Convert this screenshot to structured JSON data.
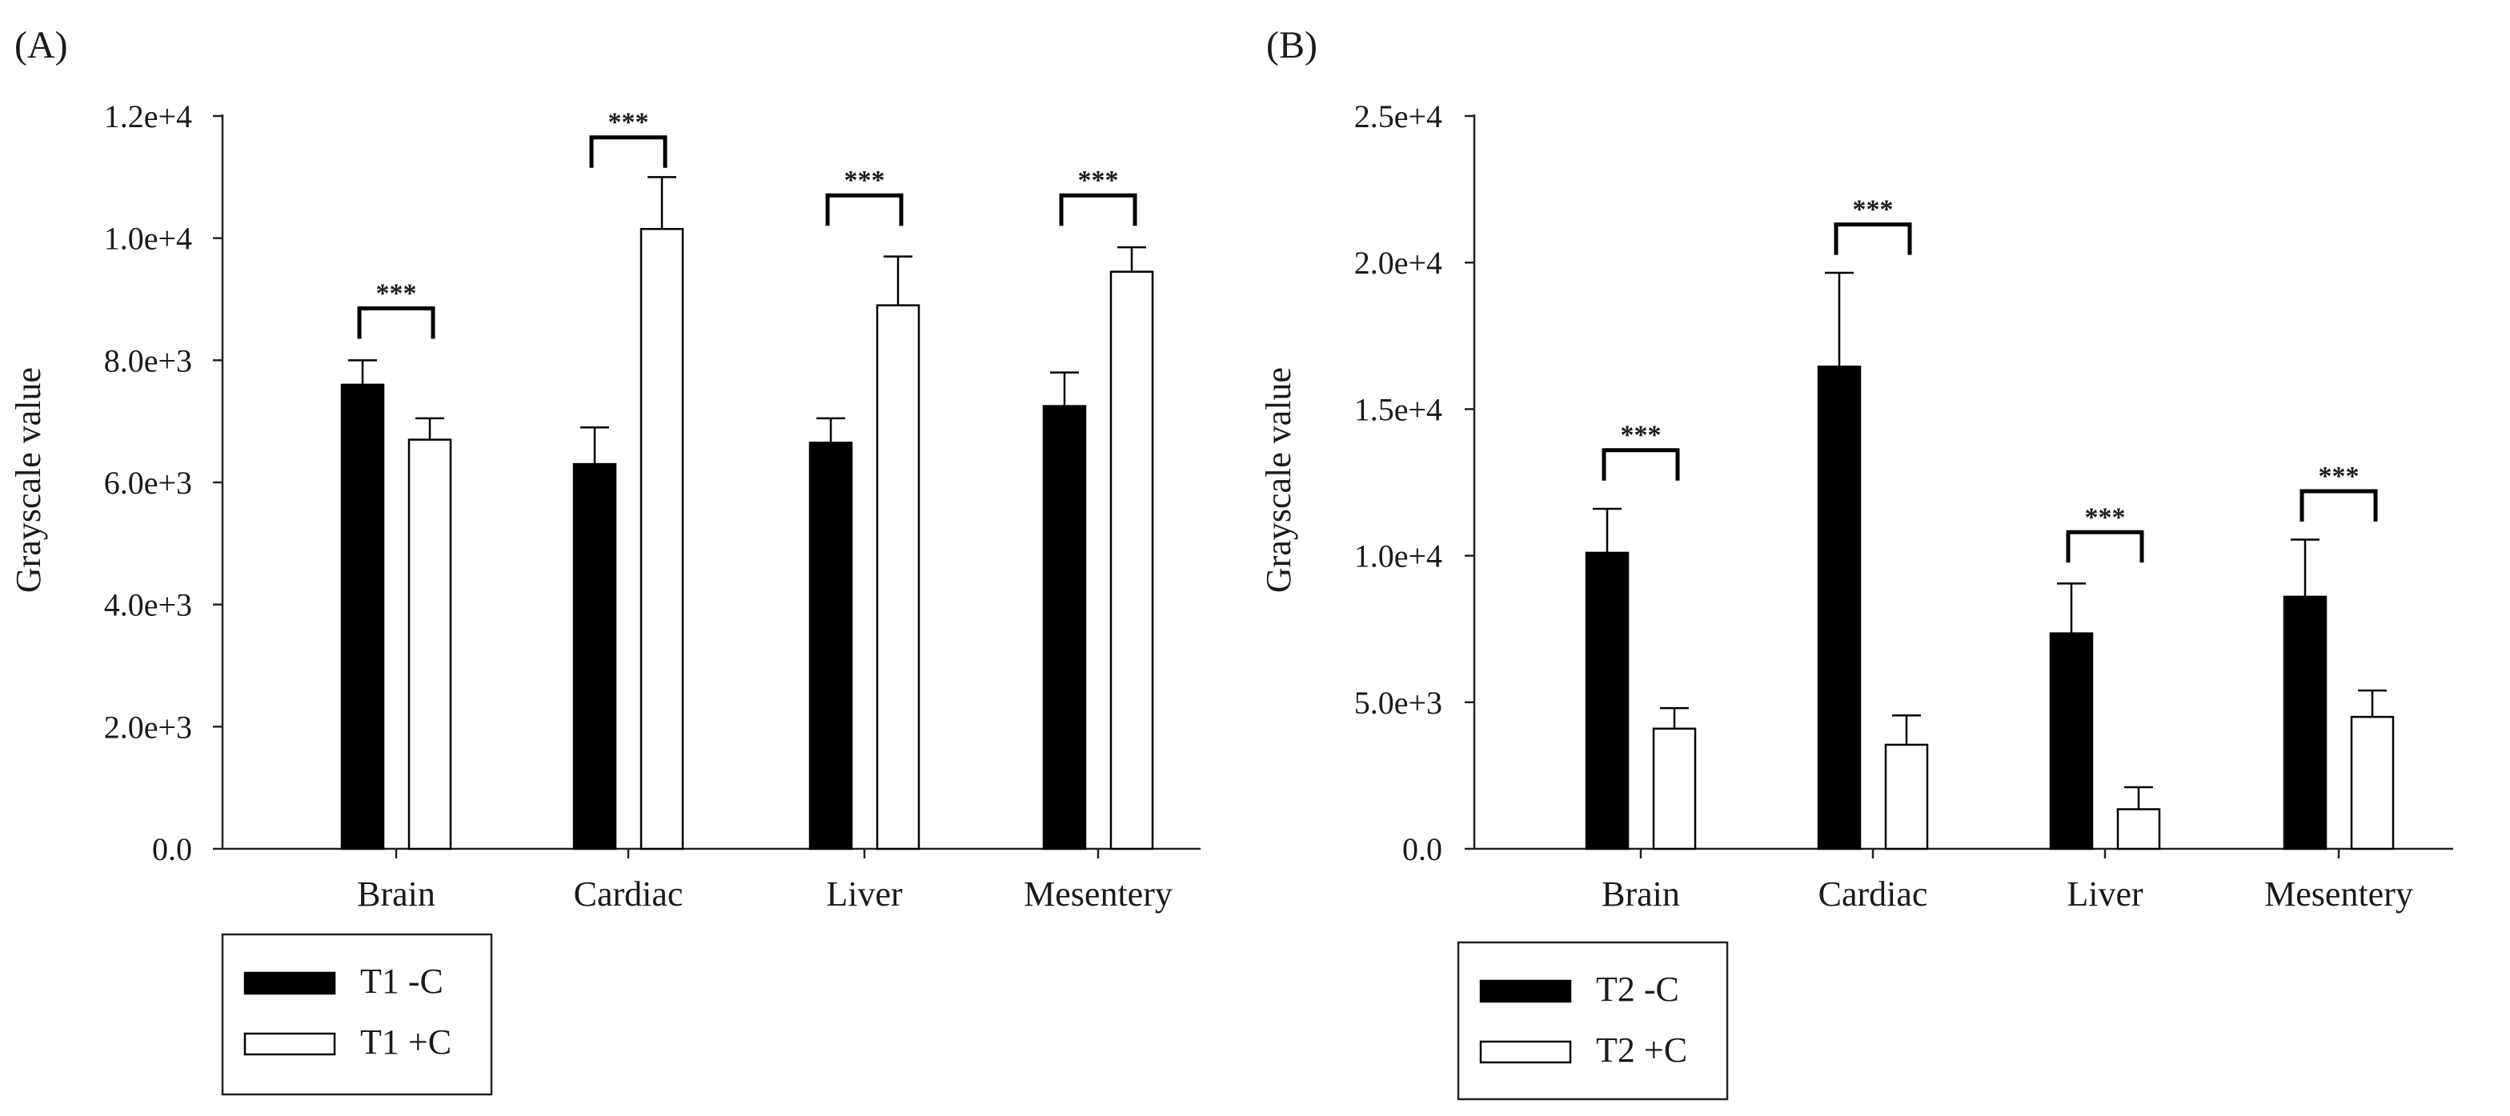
{
  "chart_data": [
    {
      "panel_label": "(A)",
      "type": "bar",
      "title": "",
      "xlabel": "",
      "ylabel": "Grayscale value",
      "ylim": [
        0,
        12000
      ],
      "yticks": [
        {
          "value": 0,
          "label": "0.0"
        },
        {
          "value": 2000,
          "label": "2.0e+3"
        },
        {
          "value": 4000,
          "label": "4.0e+3"
        },
        {
          "value": 6000,
          "label": "6.0e+3"
        },
        {
          "value": 8000,
          "label": "8.0e+3"
        },
        {
          "value": 10000,
          "label": "1.0e+4"
        },
        {
          "value": 12000,
          "label": "1.2e+4"
        }
      ],
      "categories": [
        "Brain",
        "Cardiac",
        "Liver",
        "Mesentery"
      ],
      "series": [
        {
          "name": "T1 -C",
          "fill": "#000000",
          "values": [
            7600,
            6300,
            6650,
            7250
          ],
          "errors": [
            400,
            600,
            400,
            550
          ]
        },
        {
          "name": "T1 +C",
          "fill": "#ffffff",
          "values": [
            6700,
            10150,
            8900,
            9450
          ],
          "errors": [
            350,
            850,
            800,
            400
          ]
        }
      ],
      "significance": [
        {
          "category": "Brain",
          "label": "***",
          "value": 8850
        },
        {
          "category": "Cardiac",
          "label": "***",
          "value": 11650
        },
        {
          "category": "Liver",
          "label": "***",
          "value": 10700
        },
        {
          "category": "Mesentery",
          "label": "***",
          "value": 10700
        }
      ],
      "legend_position": "bottom-left"
    },
    {
      "panel_label": "(B)",
      "type": "bar",
      "title": "",
      "xlabel": "",
      "ylabel": "Grayscale value",
      "ylim": [
        0,
        25000
      ],
      "yticks": [
        {
          "value": 0,
          "label": "0.0"
        },
        {
          "value": 5000,
          "label": "5.0e+3"
        },
        {
          "value": 10000,
          "label": "1.0e+4"
        },
        {
          "value": 15000,
          "label": "1.5e+4"
        },
        {
          "value": 20000,
          "label": "2.0e+4"
        },
        {
          "value": 25000,
          "label": "2.5e+4"
        }
      ],
      "categories": [
        "Brain",
        "Cardiac",
        "Liver",
        "Mesentery"
      ],
      "series": [
        {
          "name": "T2 -C",
          "fill": "#000000",
          "values": [
            10100,
            16450,
            7350,
            8600
          ],
          "errors": [
            1500,
            3200,
            1700,
            1950
          ]
        },
        {
          "name": "T2 +C",
          "fill": "#ffffff",
          "values": [
            4100,
            3550,
            1350,
            4500
          ],
          "errors": [
            700,
            1000,
            750,
            900
          ]
        }
      ],
      "significance": [
        {
          "category": "Brain",
          "label": "***",
          "value": 13600
        },
        {
          "category": "Cardiac",
          "label": "***",
          "value": 21300
        },
        {
          "category": "Liver",
          "label": "***",
          "value": 10800
        },
        {
          "category": "Mesentery",
          "label": "***",
          "value": 12200
        }
      ],
      "legend_position": "bottom-left"
    }
  ]
}
